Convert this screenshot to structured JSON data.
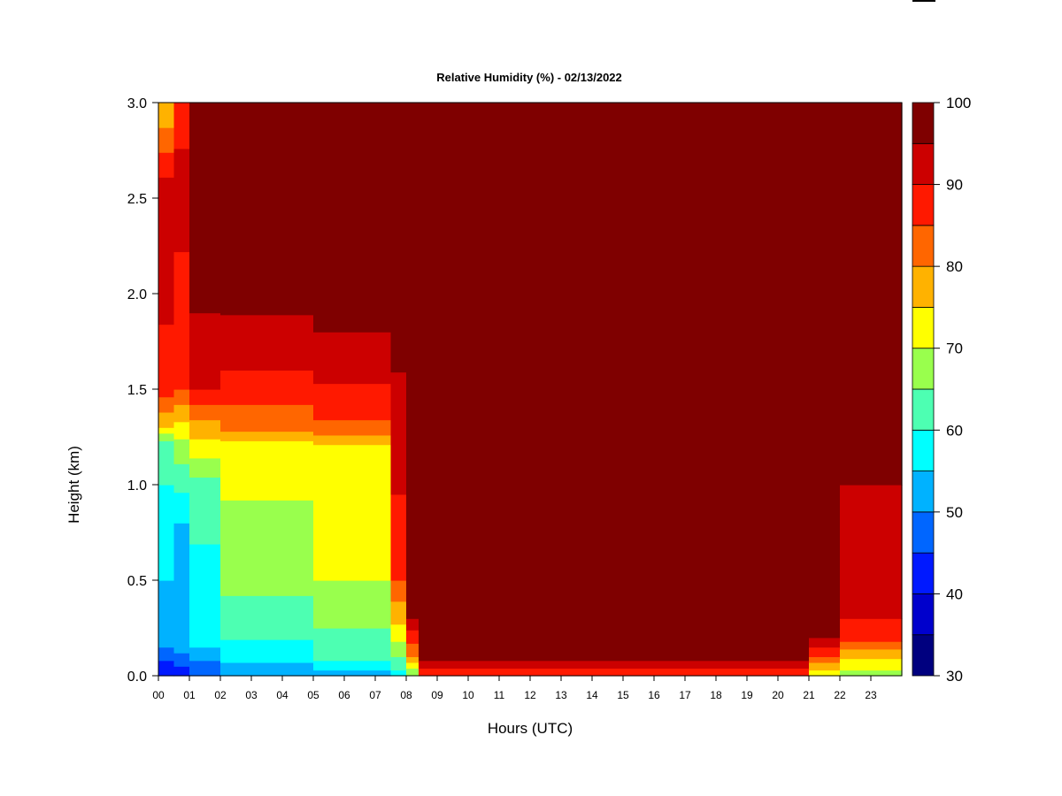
{
  "chart_data": {
    "type": "heatmap",
    "title": "Relative Humidity (%) - 02/13/2022",
    "xlabel": "Hours (UTC)",
    "ylabel": "Height (km)",
    "xlim": [
      0,
      24
    ],
    "ylim": [
      0,
      3.0
    ],
    "x_ticks": [
      "00",
      "01",
      "02",
      "03",
      "04",
      "05",
      "06",
      "07",
      "08",
      "09",
      "10",
      "11",
      "12",
      "13",
      "14",
      "15",
      "16",
      "17",
      "18",
      "19",
      "20",
      "21",
      "22",
      "23"
    ],
    "y_ticks": [
      "0.0",
      "0.5",
      "1.0",
      "1.5",
      "2.0",
      "2.5",
      "3.0"
    ],
    "colorbar": {
      "levels": [
        30,
        35,
        40,
        45,
        50,
        55,
        60,
        65,
        70,
        75,
        80,
        85,
        90,
        95,
        100
      ],
      "tick_labels": [
        "30",
        "40",
        "50",
        "60",
        "70",
        "80",
        "90",
        "100"
      ],
      "colors": [
        "#00007f",
        "#0000cc",
        "#0019ff",
        "#0066ff",
        "#00b2ff",
        "#00ffff",
        "#4dffb2",
        "#99ff4d",
        "#ffff00",
        "#ffb200",
        "#ff6600",
        "#ff1900",
        "#cc0000",
        "#7f0000"
      ]
    },
    "profiles": [
      {
        "hours": [
          0,
          0.5
        ],
        "rh_by_height": [
          [
            0,
            40
          ],
          [
            0.15,
            50
          ],
          [
            0.5,
            55
          ],
          [
            1.2,
            62
          ],
          [
            1.3,
            75
          ],
          [
            1.5,
            88
          ],
          [
            2.5,
            94
          ],
          [
            3.0,
            75
          ]
        ]
      },
      {
        "hours": [
          0.5,
          1
        ],
        "rh_by_height": [
          [
            0,
            42
          ],
          [
            0.15,
            52
          ],
          [
            0.8,
            55
          ],
          [
            1.2,
            68
          ],
          [
            1.5,
            85
          ],
          [
            2.5,
            92
          ],
          [
            3.0,
            88
          ]
        ]
      },
      {
        "hours": [
          1,
          2
        ],
        "rh_by_height": [
          [
            0,
            45
          ],
          [
            0.15,
            55
          ],
          [
            1.0,
            63
          ],
          [
            1.3,
            78
          ],
          [
            1.5,
            90
          ],
          [
            1.9,
            95
          ],
          [
            3.0,
            100
          ]
        ]
      },
      {
        "hours": [
          2,
          5
        ],
        "rh_by_height": [
          [
            0,
            50
          ],
          [
            0.1,
            58
          ],
          [
            0.5,
            67
          ],
          [
            1.2,
            72
          ],
          [
            1.3,
            82
          ],
          [
            1.6,
            90
          ],
          [
            2.0,
            97
          ],
          [
            3.0,
            100
          ]
        ]
      },
      {
        "hours": [
          5,
          7.5
        ],
        "rh_by_height": [
          [
            0,
            52
          ],
          [
            0.1,
            62
          ],
          [
            0.5,
            70
          ],
          [
            1.2,
            74
          ],
          [
            1.3,
            84
          ],
          [
            1.6,
            92
          ],
          [
            2.0,
            98
          ],
          [
            3.0,
            100
          ]
        ]
      },
      {
        "hours": [
          7.5,
          8
        ],
        "rh_by_height": [
          [
            0,
            58
          ],
          [
            0.2,
            72
          ],
          [
            0.5,
            85
          ],
          [
            1.3,
            94
          ],
          [
            3.0,
            100
          ]
        ]
      },
      {
        "hours": [
          8,
          8.4
        ],
        "rh_by_height": [
          [
            0,
            65
          ],
          [
            0.1,
            80
          ],
          [
            0.3,
            95
          ],
          [
            3.0,
            100
          ]
        ]
      },
      {
        "hours": [
          8.4,
          21
        ],
        "rh_by_height": [
          [
            0,
            85
          ],
          [
            0.05,
            92
          ],
          [
            0.1,
            97
          ],
          [
            3.0,
            100
          ]
        ]
      },
      {
        "hours": [
          21,
          22
        ],
        "rh_by_height": [
          [
            0,
            72
          ],
          [
            0.1,
            85
          ],
          [
            0.2,
            95
          ],
          [
            3.0,
            100
          ]
        ]
      },
      {
        "hours": [
          22,
          24
        ],
        "rh_by_height": [
          [
            0,
            68
          ],
          [
            0.1,
            76
          ],
          [
            0.2,
            88
          ],
          [
            0.4,
            92
          ],
          [
            1.2,
            96
          ],
          [
            3.0,
            100
          ]
        ]
      }
    ]
  }
}
